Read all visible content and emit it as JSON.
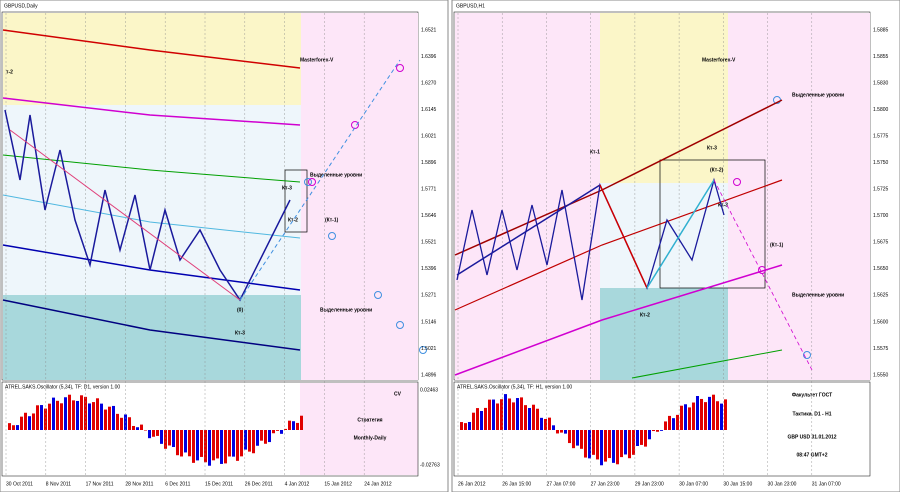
{
  "left": {
    "title": "GBPUSD,Daily",
    "watermark": "Masterforex-V",
    "price_labels": [
      "1.6521",
      "1.6396",
      "1.6270",
      "1.6145",
      "1.6021",
      "1.5896",
      "1.5771",
      "1.5646",
      "1.5521",
      "1.5396",
      "1.5271",
      "1.5146",
      "1.5021",
      "1.4896"
    ],
    "date_labels": [
      "30 Oct 2011",
      "8 Nov 2011",
      "17 Nov 2011",
      "28 Nov 2011",
      "6 Dec 2011",
      "15 Dec 2011",
      "26 Dec 2011",
      "4 Jan 2012",
      "15 Jan 2012",
      "24 Jan 2012"
    ],
    "annotations": [
      "т-2",
      "Кт-3",
      "Кт-2",
      "(Кт-1)",
      "(0)",
      "Кт-3",
      "Выделенные уровни",
      "Выделенные уровни"
    ],
    "oscillator": {
      "title": "ATREL.SAKS.Oscillator (5,34), TF: D1, version 1.00",
      "upper": "0.02463",
      "lower": "-0.02763",
      "badge": "CV"
    },
    "strategy": [
      "Стратегия",
      "Monthly-Daily"
    ]
  },
  "right": {
    "title": "GBPUSD,H1",
    "watermark": "Masterforex-V",
    "price_labels": [
      "1.5885",
      "1.5855",
      "1.5830",
      "1.5800",
      "1.5775",
      "1.5750",
      "1.5725",
      "1.5700",
      "1.5675",
      "1.5650",
      "1.5625",
      "1.5600",
      "1.5575",
      "1.5550"
    ],
    "date_labels": [
      "26 Jan 2012",
      "26 Jan 15:00",
      "27 Jan 07:00",
      "27 Jan 23:00",
      "29 Jan 23:00",
      "30 Jan 07:00",
      "30 Jan 15:00",
      "30 Jan 23:00",
      "31 Jan 07:00"
    ],
    "annotations": [
      "Кт-1",
      "Кт-3",
      "(Кт-2)",
      "Кт-3",
      "(Кт-1)",
      "Кт-2",
      "Выделенные уровни",
      "Выделенные уровни"
    ],
    "oscillator": {
      "title": "ATREL.SAKS.Oscillator (5,34), TF: H1, version 1.00"
    },
    "info": [
      "Факультет ГОСТ",
      "Тактика. D1 - H1",
      "GBP USD 31.01.2012",
      "08:47 GMT+2"
    ]
  }
}
